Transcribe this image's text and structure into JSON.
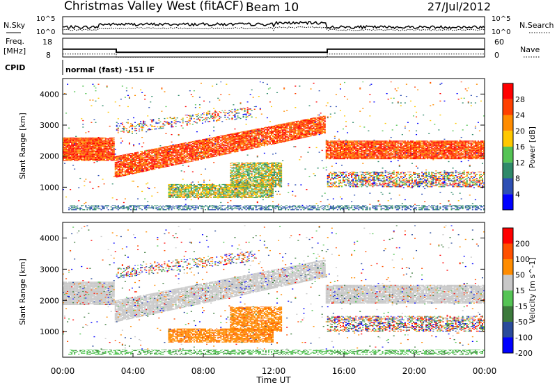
{
  "header": {
    "title": "Christmas Valley West (fitACF)",
    "beam": "Beam 10",
    "date": "27/Jul/2012"
  },
  "left_labels": {
    "nsky": "N.Sky",
    "freq": "Freq.",
    "mhz": "[MHz]",
    "cpid": "CPID"
  },
  "right_labels": {
    "nsearch": "N.Search",
    "nave": "Nave"
  },
  "cpid_text": "normal (fast) -151 IF",
  "chart_data": [
    {
      "type": "line",
      "panel": "noise",
      "series": [
        {
          "name": "N.Sky"
        },
        {
          "name": "N.Search"
        }
      ],
      "left_ticks": [
        "10^5",
        "10^0"
      ],
      "right_ticks": [
        "10^5",
        "10^0"
      ]
    },
    {
      "type": "line",
      "panel": "frequency",
      "left_ticks": [
        "18",
        "8"
      ],
      "right_ticks": [
        "60",
        "0"
      ],
      "freq_segments": [
        {
          "x0": 0.0,
          "x1": 3.05,
          "freq": 12.2
        },
        {
          "x0": 3.05,
          "x1": 15.05,
          "freq": 10.5
        },
        {
          "x0": 15.05,
          "x1": 24.0,
          "freq": 12.2
        }
      ]
    },
    {
      "type": "heatmap",
      "panel": "power",
      "ylabel": "Slant Range [km]",
      "yticks": [
        "4000",
        "3000",
        "2000",
        "1000"
      ],
      "ylim": [
        180,
        4500
      ],
      "colorbar_label": "Power [dB]",
      "colorbar_ticks": [
        "28",
        "24",
        "20",
        "16",
        "12",
        "8",
        "4"
      ],
      "colors": [
        "#0000ff",
        "#2d4fb4",
        "#2f8a6a",
        "#55c455",
        "#ffc800",
        "#ff8c00",
        "#ff4000",
        "#ff0000"
      ]
    },
    {
      "type": "heatmap",
      "panel": "velocity",
      "ylabel": "Slant Range [km]",
      "yticks": [
        "4000",
        "3000",
        "2000",
        "1000"
      ],
      "ylim": [
        180,
        4500
      ],
      "xlabel": "Time UT",
      "xticks": [
        "00:00",
        "04:00",
        "08:00",
        "12:00",
        "16:00",
        "20:00",
        "00:00"
      ],
      "colorbar_label": "Velocity [m s^-1]",
      "colorbar_ticks": [
        "200",
        "100",
        "50",
        "15",
        "-15",
        "-50",
        "-100",
        "-200"
      ],
      "colors": [
        "#0000ff",
        "#2a4b9b",
        "#3c7a3c",
        "#55c455",
        "#c8c8c8",
        "#ff8c00",
        "#ff5000",
        "#ff0000"
      ]
    }
  ]
}
